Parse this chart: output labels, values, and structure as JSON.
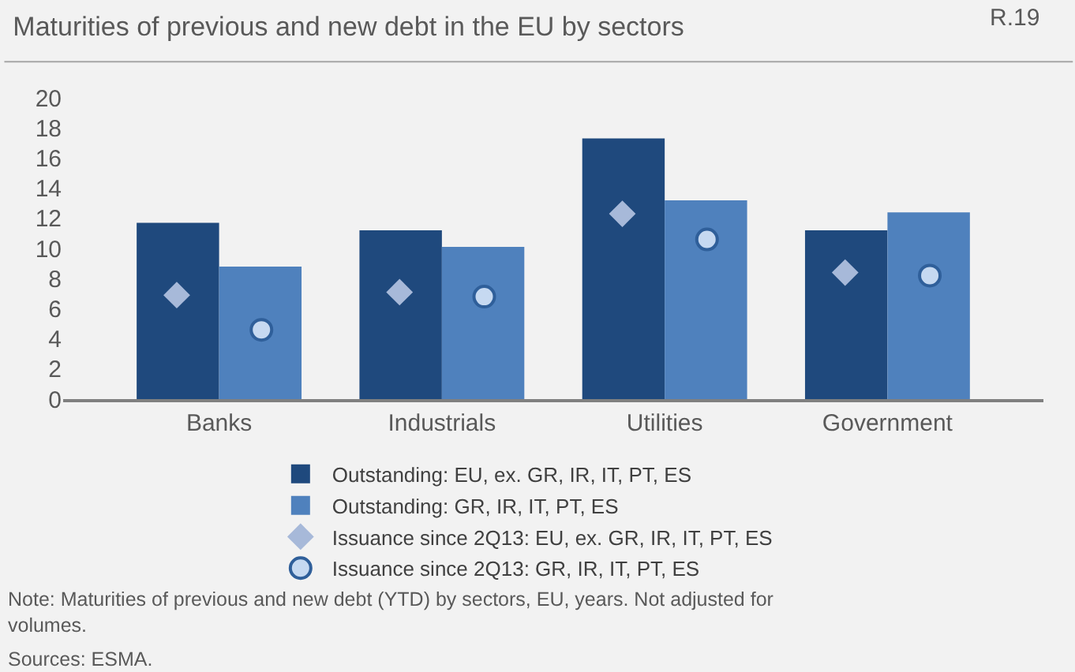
{
  "chart_data": {
    "type": "bar",
    "title": "Maturities of previous and new debt in the EU by sectors",
    "categories": [
      "Banks",
      "Industrials",
      "Utilities",
      "Government"
    ],
    "series": [
      {
        "name": "Outstanding: EU, ex. GR, IR, IT, PT, ES",
        "color": "#1f497d",
        "values": [
          11.7,
          11.2,
          17.3,
          11.2
        ]
      },
      {
        "name": "Outstanding: GR, IR, IT, PT, ES",
        "color": "#4f81bd",
        "values": [
          8.8,
          10.1,
          13.2,
          12.4
        ]
      },
      {
        "name": "Issuance since 2Q13: EU, ex. GR, IR, IT, PT, ES",
        "type": "scatter",
        "marker": "diamond",
        "color": "#a7b9d9",
        "values": [
          6.9,
          7.1,
          12.3,
          8.4
        ]
      },
      {
        "name": "Issuance since 2Q13: GR, IR, IT, PT, ES",
        "type": "scatter",
        "marker": "circle",
        "color": "#c6d9f1",
        "values": [
          4.6,
          6.8,
          10.6,
          8.2
        ]
      }
    ],
    "ylim": [
      0,
      20
    ],
    "yticks": [
      0,
      2,
      4,
      6,
      8,
      10,
      12,
      14,
      16,
      18,
      20
    ],
    "grid": false,
    "legend": "bottom",
    "annotations": [
      "R.19",
      "Note: Maturities of previous and new debt (YTD) by sectors, EU, years. Not adjusted for volumes.",
      "Sources: ESMA."
    ]
  }
}
